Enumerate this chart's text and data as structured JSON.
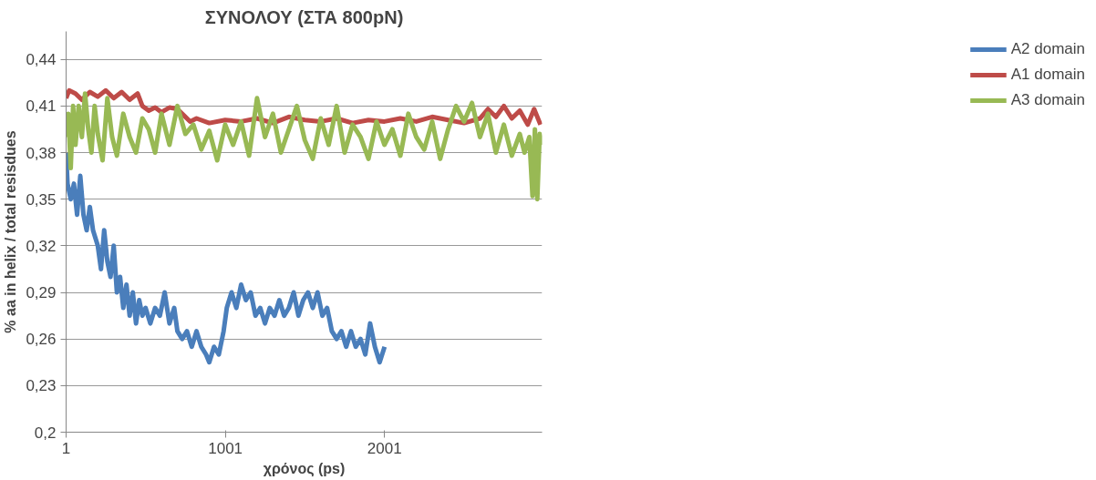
{
  "chart_data": {
    "type": "line",
    "title": "ΣΥΝΟΛΟΥ (ΣΤΑ 800pN)",
    "xlabel": "χρόνος (ps)",
    "ylabel": "% aa in helix / total resisdues",
    "xlim": [
      1,
      2990
    ],
    "xticks": [
      1,
      1001,
      2001
    ],
    "ylim": [
      0.2,
      0.458
    ],
    "yticks": [
      {
        "value": 0.2,
        "label": "0,2"
      },
      {
        "value": 0.23,
        "label": "0,23"
      },
      {
        "value": 0.26,
        "label": "0,26"
      },
      {
        "value": 0.29,
        "label": "0,29"
      },
      {
        "value": 0.32,
        "label": "0,32"
      },
      {
        "value": 0.35,
        "label": "0,35"
      },
      {
        "value": 0.38,
        "label": "0,38"
      },
      {
        "value": 0.41,
        "label": "0,41"
      },
      {
        "value": 0.44,
        "label": "0,44"
      }
    ],
    "grid": "y",
    "legend": "right",
    "line_style": "solid",
    "marker": "none",
    "series": [
      {
        "name": "A2 domain",
        "color": "#4a7ebb",
        "x": [
          1,
          10,
          30,
          50,
          70,
          90,
          110,
          130,
          150,
          170,
          200,
          220,
          240,
          260,
          280,
          300,
          320,
          340,
          360,
          380,
          400,
          420,
          440,
          460,
          480,
          500,
          530,
          560,
          590,
          620,
          650,
          680,
          700,
          730,
          760,
          790,
          820,
          850,
          880,
          900,
          930,
          960,
          990,
          1010,
          1040,
          1070,
          1100,
          1130,
          1160,
          1190,
          1220,
          1250,
          1280,
          1310,
          1340,
          1370,
          1400,
          1430,
          1460,
          1490,
          1520,
          1550,
          1580,
          1610,
          1640,
          1670,
          1700,
          1730,
          1760,
          1790,
          1820,
          1850,
          1880,
          1910,
          1940,
          1970,
          2001
        ],
        "values": [
          0.38,
          0.36,
          0.35,
          0.36,
          0.34,
          0.365,
          0.34,
          0.33,
          0.345,
          0.33,
          0.32,
          0.305,
          0.33,
          0.31,
          0.3,
          0.32,
          0.29,
          0.3,
          0.28,
          0.295,
          0.275,
          0.29,
          0.27,
          0.285,
          0.275,
          0.28,
          0.27,
          0.28,
          0.275,
          0.29,
          0.27,
          0.28,
          0.265,
          0.26,
          0.265,
          0.255,
          0.265,
          0.255,
          0.25,
          0.245,
          0.255,
          0.25,
          0.265,
          0.28,
          0.29,
          0.28,
          0.295,
          0.285,
          0.29,
          0.275,
          0.28,
          0.27,
          0.28,
          0.275,
          0.285,
          0.275,
          0.28,
          0.29,
          0.275,
          0.285,
          0.29,
          0.28,
          0.29,
          0.275,
          0.28,
          0.265,
          0.26,
          0.265,
          0.255,
          0.265,
          0.255,
          0.26,
          0.25,
          0.27,
          0.255,
          0.245,
          0.255
        ]
      },
      {
        "name": "A1 domain",
        "color": "#be4b48",
        "x": [
          1,
          20,
          60,
          100,
          150,
          200,
          250,
          300,
          350,
          400,
          450,
          480,
          520,
          560,
          600,
          650,
          700,
          740,
          780,
          820,
          900,
          1000,
          1100,
          1200,
          1300,
          1400,
          1500,
          1600,
          1700,
          1800,
          1900,
          2000,
          2100,
          2200,
          2300,
          2400,
          2500,
          2600,
          2650,
          2700,
          2750,
          2800,
          2850,
          2900,
          2940,
          2980
        ],
        "values": [
          0.415,
          0.42,
          0.418,
          0.414,
          0.419,
          0.416,
          0.42,
          0.415,
          0.419,
          0.414,
          0.418,
          0.41,
          0.407,
          0.409,
          0.406,
          0.409,
          0.408,
          0.404,
          0.4,
          0.402,
          0.399,
          0.401,
          0.4,
          0.402,
          0.399,
          0.403,
          0.401,
          0.4,
          0.402,
          0.399,
          0.401,
          0.4,
          0.402,
          0.4,
          0.403,
          0.401,
          0.399,
          0.402,
          0.408,
          0.403,
          0.41,
          0.402,
          0.407,
          0.398,
          0.408,
          0.398
        ]
      },
      {
        "name": "A3 domain",
        "color": "#98b954",
        "x": [
          1,
          15,
          30,
          45,
          60,
          80,
          100,
          120,
          140,
          160,
          180,
          200,
          230,
          260,
          290,
          320,
          360,
          400,
          440,
          480,
          520,
          560,
          600,
          650,
          700,
          750,
          800,
          850,
          900,
          950,
          1000,
          1050,
          1100,
          1150,
          1200,
          1250,
          1300,
          1350,
          1400,
          1450,
          1500,
          1550,
          1600,
          1650,
          1700,
          1750,
          1800,
          1850,
          1900,
          1950,
          2000,
          2050,
          2100,
          2150,
          2200,
          2250,
          2300,
          2350,
          2400,
          2450,
          2500,
          2550,
          2600,
          2650,
          2700,
          2750,
          2800,
          2850,
          2880,
          2910,
          2930,
          2945,
          2960,
          2975,
          2990
        ],
        "values": [
          0.39,
          0.405,
          0.37,
          0.41,
          0.385,
          0.41,
          0.39,
          0.418,
          0.395,
          0.38,
          0.41,
          0.392,
          0.375,
          0.415,
          0.39,
          0.378,
          0.405,
          0.39,
          0.38,
          0.402,
          0.395,
          0.38,
          0.405,
          0.385,
          0.41,
          0.392,
          0.398,
          0.382,
          0.394,
          0.375,
          0.398,
          0.385,
          0.4,
          0.378,
          0.415,
          0.39,
          0.405,
          0.38,
          0.395,
          0.41,
          0.388,
          0.376,
          0.402,
          0.385,
          0.41,
          0.38,
          0.398,
          0.39,
          0.376,
          0.4,
          0.385,
          0.395,
          0.378,
          0.405,
          0.39,
          0.382,
          0.4,
          0.376,
          0.395,
          0.41,
          0.4,
          0.412,
          0.39,
          0.405,
          0.38,
          0.398,
          0.378,
          0.392,
          0.38,
          0.39,
          0.352,
          0.395,
          0.35,
          0.392,
          0.385
        ]
      }
    ]
  }
}
